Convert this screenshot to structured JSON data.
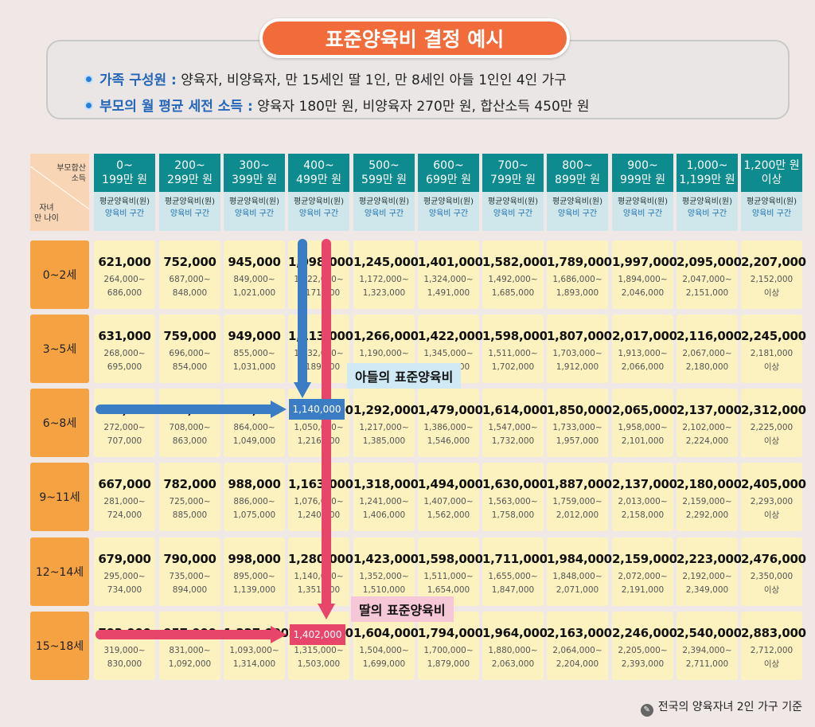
{
  "title": "표준양육비 결정 예시",
  "info": [
    {
      "label": "가족 구성원 :",
      "text": "양육자, 비양육자, 만 15세인 딸 1인, 만 8세인 아들 1인인 4인 가구"
    },
    {
      "label": "부모의 월 평균 세전 소득 :",
      "text": "양육자 180만 원, 비양육자 270만 원, 합산소득 450만 원"
    }
  ],
  "corner": {
    "top_line1": "부모합산",
    "top_line2": "소득",
    "bottom_line1": "자녀",
    "bottom_line2": "만 나이"
  },
  "sub_header": {
    "line1": "평균양육비(원)",
    "line2": "양육비 구간"
  },
  "columns": [
    {
      "l1": "0~",
      "l2": "199만 원"
    },
    {
      "l1": "200~",
      "l2": "299만 원"
    },
    {
      "l1": "300~",
      "l2": "399만 원"
    },
    {
      "l1": "400~",
      "l2": "499만 원"
    },
    {
      "l1": "500~",
      "l2": "599만 원"
    },
    {
      "l1": "600~",
      "l2": "699만 원"
    },
    {
      "l1": "700~",
      "l2": "799만 원"
    },
    {
      "l1": "800~",
      "l2": "899만 원"
    },
    {
      "l1": "900~",
      "l2": "999만 원"
    },
    {
      "l1": "1,000~",
      "l2": "1,199만 원"
    },
    {
      "l1": "1,200만 원",
      "l2": "이상"
    }
  ],
  "rows": [
    {
      "label": "0~2세",
      "cells": [
        {
          "avg": "621,000",
          "r1": "264,000~",
          "r2": "686,000"
        },
        {
          "avg": "752,000",
          "r1": "687,000~",
          "r2": "848,000"
        },
        {
          "avg": "945,000",
          "r1": "849,000~",
          "r2": "1,021,000"
        },
        {
          "avg": "1,098,000",
          "r1": "1,022,000~",
          "r2": "1,171,000"
        },
        {
          "avg": "1,245,000",
          "r1": "1,172,000~",
          "r2": "1,323,000"
        },
        {
          "avg": "1,401,000",
          "r1": "1,324,000~",
          "r2": "1,491,000"
        },
        {
          "avg": "1,582,000",
          "r1": "1,492,000~",
          "r2": "1,685,000"
        },
        {
          "avg": "1,789,000",
          "r1": "1,686,000~",
          "r2": "1,893,000"
        },
        {
          "avg": "1,997,000",
          "r1": "1,894,000~",
          "r2": "2,046,000"
        },
        {
          "avg": "2,095,000",
          "r1": "2,047,000~",
          "r2": "2,151,000"
        },
        {
          "avg": "2,207,000",
          "r1": "2,152,000",
          "r2": "이상"
        }
      ]
    },
    {
      "label": "3~5세",
      "cells": [
        {
          "avg": "631,000",
          "r1": "268,000~",
          "r2": "695,000"
        },
        {
          "avg": "759,000",
          "r1": "696,000~",
          "r2": "854,000"
        },
        {
          "avg": "949,000",
          "r1": "855,000~",
          "r2": "1,031,000"
        },
        {
          "avg": "1,113,000",
          "r1": "1,032,000~",
          "r2": "1,189,000"
        },
        {
          "avg": "1,266,000",
          "r1": "1,190,000~",
          "r2": "1,344,000"
        },
        {
          "avg": "1,422,000",
          "r1": "1,345,000~",
          "r2": "1,510,000"
        },
        {
          "avg": "1,598,000",
          "r1": "1,511,000~",
          "r2": "1,702,000"
        },
        {
          "avg": "1,807,000",
          "r1": "1,703,000~",
          "r2": "1,912,000"
        },
        {
          "avg": "2,017,000",
          "r1": "1,913,000~",
          "r2": "2,066,000"
        },
        {
          "avg": "2,116,000",
          "r1": "2,067,000~",
          "r2": "2,180,000"
        },
        {
          "avg": "2,245,000",
          "r1": "2,181,000",
          "r2": "이상"
        }
      ]
    },
    {
      "label": "6~8세",
      "cells": [
        {
          "avg": "648,000",
          "r1": "272,000~",
          "r2": "707,000"
        },
        {
          "avg": "767,000",
          "r1": "708,000~",
          "r2": "863,000"
        },
        {
          "avg": "959,000",
          "r1": "864,000~",
          "r2": "1,049,000"
        },
        {
          "avg": "1,140,000",
          "r1": "1,050,000~",
          "r2": "1,216,000"
        },
        {
          "avg": "1,292,000",
          "r1": "1,217,000~",
          "r2": "1,385,000"
        },
        {
          "avg": "1,479,000",
          "r1": "1,386,000~",
          "r2": "1,546,000"
        },
        {
          "avg": "1,614,000",
          "r1": "1,547,000~",
          "r2": "1,732,000"
        },
        {
          "avg": "1,850,000",
          "r1": "1,733,000~",
          "r2": "1,957,000"
        },
        {
          "avg": "2,065,000",
          "r1": "1,958,000~",
          "r2": "2,101,000"
        },
        {
          "avg": "2,137,000",
          "r1": "2,102,000~",
          "r2": "2,224,000"
        },
        {
          "avg": "2,312,000",
          "r1": "2,225,000",
          "r2": "이상"
        }
      ]
    },
    {
      "label": "9~11세",
      "cells": [
        {
          "avg": "667,000",
          "r1": "281,000~",
          "r2": "724,000"
        },
        {
          "avg": "782,000",
          "r1": "725,000~",
          "r2": "885,000"
        },
        {
          "avg": "988,000",
          "r1": "886,000~",
          "r2": "1,075,000"
        },
        {
          "avg": "1,163,000",
          "r1": "1,076,000~",
          "r2": "1,240,000"
        },
        {
          "avg": "1,318,000",
          "r1": "1,241,000~",
          "r2": "1,406,000"
        },
        {
          "avg": "1,494,000",
          "r1": "1,407,000~",
          "r2": "1,562,000"
        },
        {
          "avg": "1,630,000",
          "r1": "1,563,000~",
          "r2": "1,758,000"
        },
        {
          "avg": "1,887,000",
          "r1": "1,759,000~",
          "r2": "2,012,000"
        },
        {
          "avg": "2,137,000",
          "r1": "2,013,000~",
          "r2": "2,158,000"
        },
        {
          "avg": "2,180,000",
          "r1": "2,159,000~",
          "r2": "2,292,000"
        },
        {
          "avg": "2,405,000",
          "r1": "2,293,000",
          "r2": "이상"
        }
      ]
    },
    {
      "label": "12~14세",
      "cells": [
        {
          "avg": "679,000",
          "r1": "295,000~",
          "r2": "734,000"
        },
        {
          "avg": "790,000",
          "r1": "735,000~",
          "r2": "894,000"
        },
        {
          "avg": "998,000",
          "r1": "895,000~",
          "r2": "1,139,000"
        },
        {
          "avg": "1,280,000",
          "r1": "1,140,000~",
          "r2": "1,351,000"
        },
        {
          "avg": "1,423,000",
          "r1": "1,352,000~",
          "r2": "1,510,000"
        },
        {
          "avg": "1,598,000",
          "r1": "1,511,000~",
          "r2": "1,654,000"
        },
        {
          "avg": "1,711,000",
          "r1": "1,655,000~",
          "r2": "1,847,000"
        },
        {
          "avg": "1,984,000",
          "r1": "1,848,000~",
          "r2": "2,071,000"
        },
        {
          "avg": "2,159,000",
          "r1": "2,072,000~",
          "r2": "2,191,000"
        },
        {
          "avg": "2,223,000",
          "r1": "2,192,000~",
          "r2": "2,349,000"
        },
        {
          "avg": "2,476,000",
          "r1": "2,350,000",
          "r2": "이상"
        }
      ]
    },
    {
      "label": "15~18세",
      "cells": [
        {
          "avg": "703,000",
          "r1": "319,000~",
          "r2": "830,000"
        },
        {
          "avg": "957,000",
          "r1": "831,000~",
          "r2": "1,092,000"
        },
        {
          "avg": "1,227,000",
          "r1": "1,093,000~",
          "r2": "1,314,000"
        },
        {
          "avg": "1,402,000",
          "r1": "1,315,000~",
          "r2": "1,503,000"
        },
        {
          "avg": "1,604,000",
          "r1": "1,504,000~",
          "r2": "1,699,000"
        },
        {
          "avg": "1,794,000",
          "r1": "1,700,000~",
          "r2": "1,879,000"
        },
        {
          "avg": "1,964,000",
          "r1": "1,880,000~",
          "r2": "2,063,000"
        },
        {
          "avg": "2,163,000",
          "r1": "2,064,000~",
          "r2": "2,204,000"
        },
        {
          "avg": "2,246,000",
          "r1": "2,205,000~",
          "r2": "2,393,000"
        },
        {
          "avg": "2,540,000",
          "r1": "2,394,000~",
          "r2": "2,711,000"
        },
        {
          "avg": "2,883,000",
          "r1": "2,712,000",
          "r2": "이상"
        }
      ]
    }
  ],
  "highlights": {
    "son": {
      "value": "1,140,000",
      "callout": "아들의 표준양육비",
      "color": "#3b7dc4",
      "callout_bg": "#cfe9f5"
    },
    "daughter": {
      "value": "1,402,000",
      "callout": "딸의 표준양육비",
      "color": "#e8456a",
      "callout_bg": "#f6c7d6"
    }
  },
  "footnote": "전국의 양육자녀 2인 가구 기준",
  "colors": {
    "teal": "#0d8b8f",
    "orange": "#f5a242",
    "cell": "#fbf2bf",
    "title": "#f26b3a"
  }
}
